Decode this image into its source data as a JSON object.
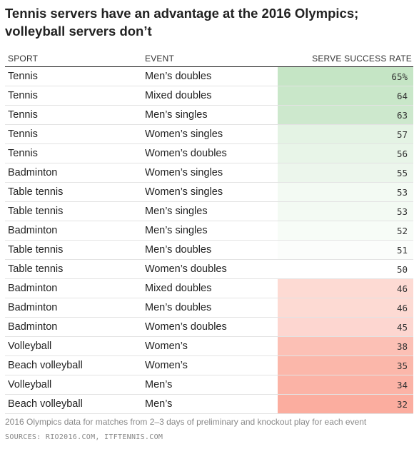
{
  "title": "Tennis servers have an advantage at the 2016 Olympics; volleyball servers don’t",
  "columns": {
    "sport": "SPORT",
    "event": "EVENT",
    "rate": "SERVE SUCCESS RATE"
  },
  "chart_data": {
    "type": "table",
    "title": "Tennis servers have an advantage at the 2016 Olympics; volleyball servers don’t",
    "columns": [
      "SPORT",
      "EVENT",
      "SERVE SUCCESS RATE"
    ],
    "rows": [
      {
        "sport": "Tennis",
        "event": "Men’s doubles",
        "rate": 65,
        "rate_label": "65%"
      },
      {
        "sport": "Tennis",
        "event": "Mixed doubles",
        "rate": 64,
        "rate_label": "64"
      },
      {
        "sport": "Tennis",
        "event": "Men’s singles",
        "rate": 63,
        "rate_label": "63"
      },
      {
        "sport": "Tennis",
        "event": "Women’s singles",
        "rate": 57,
        "rate_label": "57"
      },
      {
        "sport": "Tennis",
        "event": "Women’s doubles",
        "rate": 56,
        "rate_label": "56"
      },
      {
        "sport": "Badminton",
        "event": "Women’s singles",
        "rate": 55,
        "rate_label": "55"
      },
      {
        "sport": "Table tennis",
        "event": "Women’s singles",
        "rate": 53,
        "rate_label": "53"
      },
      {
        "sport": "Table tennis",
        "event": "Men’s singles",
        "rate": 53,
        "rate_label": "53"
      },
      {
        "sport": "Badminton",
        "event": "Men’s singles",
        "rate": 52,
        "rate_label": "52"
      },
      {
        "sport": "Table tennis",
        "event": "Men’s doubles",
        "rate": 51,
        "rate_label": "51"
      },
      {
        "sport": "Table tennis",
        "event": "Women’s doubles",
        "rate": 50,
        "rate_label": "50"
      },
      {
        "sport": "Badminton",
        "event": "Mixed doubles",
        "rate": 46,
        "rate_label": "46"
      },
      {
        "sport": "Badminton",
        "event": "Men’s doubles",
        "rate": 46,
        "rate_label": "46"
      },
      {
        "sport": "Badminton",
        "event": "Women’s doubles",
        "rate": 45,
        "rate_label": "45"
      },
      {
        "sport": "Volleyball",
        "event": "Women’s",
        "rate": 38,
        "rate_label": "38"
      },
      {
        "sport": "Beach volleyball",
        "event": "Women’s",
        "rate": 35,
        "rate_label": "35"
      },
      {
        "sport": "Volleyball",
        "event": "Men’s",
        "rate": 34,
        "rate_label": "34"
      },
      {
        "sport": "Beach volleyball",
        "event": "Men’s",
        "rate": 32,
        "rate_label": "32"
      }
    ]
  },
  "colors": {
    "high": "#c5e5c5",
    "neutral": "#ffffff",
    "low": "#fbad9f"
  },
  "footnote": "2016 Olympics data for matches from 2–3 days of preliminary and knockout play for each event",
  "sources": "SOURCES: RIO2016.COM, ITFTENNIS.COM"
}
